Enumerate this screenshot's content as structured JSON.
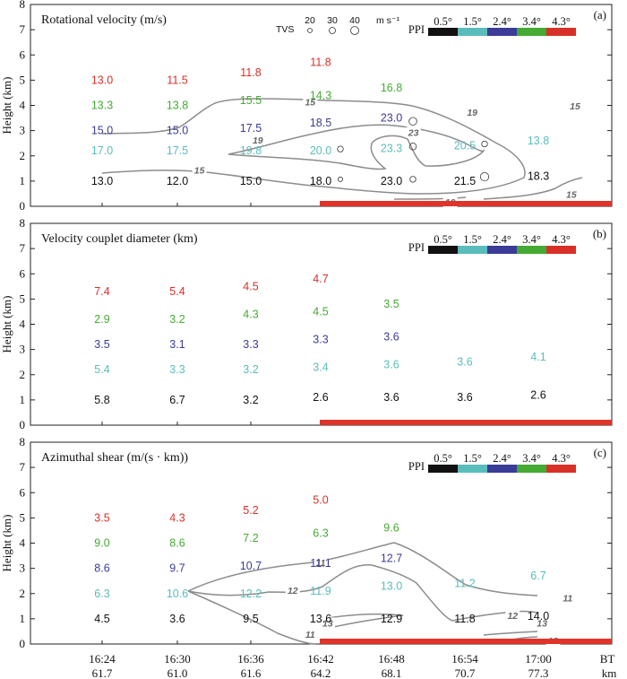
{
  "colors": {
    "ppi_0_5": "#111111",
    "ppi_1_5": "#5bbcbc",
    "ppi_2_4": "#3b3b98",
    "ppi_3_4": "#44aa33",
    "ppi_4_3": "#d73127",
    "contour": "#8c8c8c",
    "bar": "#e0342a"
  },
  "ppi_legend": {
    "label": "PPI",
    "items": [
      "0.5°",
      "1.5°",
      "2.4°",
      "3.4°",
      "4.3°"
    ]
  },
  "tvs_legend": {
    "label": "TVS",
    "sizes": [
      "20",
      "30",
      "40"
    ],
    "unit": "m s⁻¹"
  },
  "x_axis": {
    "times": [
      "16:24",
      "16:30",
      "16:36",
      "16:42",
      "16:48",
      "16:54",
      "17:00"
    ],
    "distances": [
      "61.7",
      "61.0",
      "61.6",
      "64.2",
      "68.1",
      "70.7",
      "77.3"
    ],
    "label_top": "BT",
    "label_bottom": "km"
  },
  "chart_data": [
    {
      "id": "a",
      "type": "table",
      "panel_label": "(a)",
      "title": "Rotational velocity (m/s)",
      "ylabel": "Height (km)",
      "ylim": [
        0,
        8
      ],
      "yticks": [
        "0",
        "1",
        "2",
        "3",
        "4",
        "5",
        "6",
        "7",
        "8"
      ],
      "columns": [
        "16:24",
        "16:30",
        "16:36",
        "16:42",
        "16:48",
        "16:54",
        "17:00"
      ],
      "points": [
        {
          "col": 0,
          "h": 1.0,
          "ppi": 0,
          "text": "13.0"
        },
        {
          "col": 0,
          "h": 2.2,
          "ppi": 1,
          "text": "17.0"
        },
        {
          "col": 0,
          "h": 3.0,
          "ppi": 2,
          "text": "15.0"
        },
        {
          "col": 0,
          "h": 4.0,
          "ppi": 3,
          "text": "13.3"
        },
        {
          "col": 0,
          "h": 5.0,
          "ppi": 4,
          "text": "13.0"
        },
        {
          "col": 1,
          "h": 1.0,
          "ppi": 0,
          "text": "12.0"
        },
        {
          "col": 1,
          "h": 2.2,
          "ppi": 1,
          "text": "17.5"
        },
        {
          "col": 1,
          "h": 3.0,
          "ppi": 2,
          "text": "15.0"
        },
        {
          "col": 1,
          "h": 4.0,
          "ppi": 3,
          "text": "13.8"
        },
        {
          "col": 1,
          "h": 5.0,
          "ppi": 4,
          "text": "11.5"
        },
        {
          "col": 2,
          "h": 1.0,
          "ppi": 0,
          "text": "15.0"
        },
        {
          "col": 2,
          "h": 2.2,
          "ppi": 1,
          "text": "19.8"
        },
        {
          "col": 2,
          "h": 3.1,
          "ppi": 2,
          "text": "17.5"
        },
        {
          "col": 2,
          "h": 4.2,
          "ppi": 3,
          "text": "15.5"
        },
        {
          "col": 2,
          "h": 5.3,
          "ppi": 4,
          "text": "11.8"
        },
        {
          "col": 3,
          "h": 1.0,
          "ppi": 0,
          "text": "18.0"
        },
        {
          "col": 3,
          "h": 2.2,
          "ppi": 1,
          "text": "20.0"
        },
        {
          "col": 3,
          "h": 3.3,
          "ppi": 2,
          "text": "18.5"
        },
        {
          "col": 3,
          "h": 4.4,
          "ppi": 3,
          "text": "14.3"
        },
        {
          "col": 3,
          "h": 5.7,
          "ppi": 4,
          "text": "11.8"
        },
        {
          "col": 4,
          "h": 1.0,
          "ppi": 0,
          "text": "23.0"
        },
        {
          "col": 4,
          "h": 2.3,
          "ppi": 1,
          "text": "23.3"
        },
        {
          "col": 4,
          "h": 3.5,
          "ppi": 2,
          "text": "23.0"
        },
        {
          "col": 4,
          "h": 4.7,
          "ppi": 3,
          "text": "16.8"
        },
        {
          "col": 5,
          "h": 1.0,
          "ppi": 0,
          "text": "21.5"
        },
        {
          "col": 5,
          "h": 2.4,
          "ppi": 1,
          "text": "20.5"
        },
        {
          "col": 6,
          "h": 1.2,
          "ppi": 0,
          "text": "18.3"
        },
        {
          "col": 6,
          "h": 2.6,
          "ppi": 1,
          "text": "13.8"
        }
      ],
      "tvs": [
        {
          "col": 3,
          "h": 2.2,
          "v": 22
        },
        {
          "col": 3,
          "h": 1.0,
          "v": 18
        },
        {
          "col": 4,
          "h": 3.3,
          "v": 28
        },
        {
          "col": 4,
          "h": 2.3,
          "v": 25
        },
        {
          "col": 4,
          "h": 1.0,
          "v": 22
        },
        {
          "col": 5,
          "h": 2.4,
          "v": 22
        },
        {
          "col": 5,
          "h": 1.1,
          "v": 30
        }
      ],
      "contour_labels": [
        {
          "text": "15",
          "x": 1.3,
          "h": 1.4
        },
        {
          "text": "15",
          "x": 2.85,
          "h": 4.1
        },
        {
          "text": "19",
          "x": 2.1,
          "h": 2.6
        },
        {
          "text": "23",
          "x": 4.3,
          "h": 2.9
        },
        {
          "text": "19",
          "x": 5.1,
          "h": 3.7
        },
        {
          "text": "15",
          "x": 6.5,
          "h": 3.95
        },
        {
          "text": "10",
          "x": 4.8,
          "h": 0.15
        },
        {
          "text": "15",
          "x": 6.45,
          "h": 0.45
        }
      ],
      "bar_from_col": 3
    },
    {
      "id": "b",
      "type": "table",
      "panel_label": "(b)",
      "title": "Velocity couplet diameter (km)",
      "ylabel": "Height (km)",
      "ylim": [
        0,
        8
      ],
      "yticks": [
        "0",
        "1",
        "2",
        "3",
        "4",
        "5",
        "6",
        "7",
        "8"
      ],
      "columns": [
        "16:24",
        "16:30",
        "16:36",
        "16:42",
        "16:48",
        "16:54",
        "17:00"
      ],
      "points": [
        {
          "col": 0,
          "h": 1.0,
          "ppi": 0,
          "text": "5.8"
        },
        {
          "col": 0,
          "h": 2.2,
          "ppi": 1,
          "text": "5.4"
        },
        {
          "col": 0,
          "h": 3.2,
          "ppi": 2,
          "text": "3.5"
        },
        {
          "col": 0,
          "h": 4.2,
          "ppi": 3,
          "text": "2.9"
        },
        {
          "col": 0,
          "h": 5.3,
          "ppi": 4,
          "text": "7.4"
        },
        {
          "col": 1,
          "h": 1.0,
          "ppi": 0,
          "text": "6.7"
        },
        {
          "col": 1,
          "h": 2.2,
          "ppi": 1,
          "text": "3.3"
        },
        {
          "col": 1,
          "h": 3.2,
          "ppi": 2,
          "text": "3.1"
        },
        {
          "col": 1,
          "h": 4.2,
          "ppi": 3,
          "text": "3.2"
        },
        {
          "col": 1,
          "h": 5.3,
          "ppi": 4,
          "text": "5.4"
        },
        {
          "col": 2,
          "h": 1.0,
          "ppi": 0,
          "text": "3.2"
        },
        {
          "col": 2,
          "h": 2.2,
          "ppi": 1,
          "text": "3.2"
        },
        {
          "col": 2,
          "h": 3.2,
          "ppi": 2,
          "text": "3.3"
        },
        {
          "col": 2,
          "h": 4.4,
          "ppi": 3,
          "text": "4.3"
        },
        {
          "col": 2,
          "h": 5.5,
          "ppi": 4,
          "text": "4.5"
        },
        {
          "col": 3,
          "h": 1.1,
          "ppi": 0,
          "text": "2.6"
        },
        {
          "col": 3,
          "h": 2.3,
          "ppi": 1,
          "text": "3.4"
        },
        {
          "col": 3,
          "h": 3.4,
          "ppi": 2,
          "text": "3.3"
        },
        {
          "col": 3,
          "h": 4.5,
          "ppi": 3,
          "text": "4.5"
        },
        {
          "col": 3,
          "h": 5.8,
          "ppi": 4,
          "text": "4.7"
        },
        {
          "col": 4,
          "h": 1.1,
          "ppi": 0,
          "text": "3.6"
        },
        {
          "col": 4,
          "h": 2.4,
          "ppi": 1,
          "text": "3.6"
        },
        {
          "col": 4,
          "h": 3.5,
          "ppi": 2,
          "text": "3.6"
        },
        {
          "col": 4,
          "h": 4.8,
          "ppi": 3,
          "text": "3.5"
        },
        {
          "col": 5,
          "h": 1.1,
          "ppi": 0,
          "text": "3.6"
        },
        {
          "col": 5,
          "h": 2.5,
          "ppi": 1,
          "text": "3.6"
        },
        {
          "col": 6,
          "h": 1.2,
          "ppi": 0,
          "text": "2.6"
        },
        {
          "col": 6,
          "h": 2.7,
          "ppi": 1,
          "text": "4.1"
        }
      ],
      "tvs": [],
      "contour_labels": [],
      "bar_from_col": 3
    },
    {
      "id": "c",
      "type": "table",
      "panel_label": "(c)",
      "title": "Azimuthal shear (m/(s · km))",
      "ylabel": "Height (km)",
      "ylim": [
        0,
        8
      ],
      "yticks": [
        "0",
        "1",
        "2",
        "3",
        "4",
        "5",
        "6",
        "7",
        "8"
      ],
      "columns": [
        "16:24",
        "16:30",
        "16:36",
        "16:42",
        "16:48",
        "16:54",
        "17:00"
      ],
      "points": [
        {
          "col": 0,
          "h": 1.0,
          "ppi": 0,
          "text": "4.5"
        },
        {
          "col": 0,
          "h": 2.0,
          "ppi": 1,
          "text": "6.3"
        },
        {
          "col": 0,
          "h": 3.0,
          "ppi": 2,
          "text": "8.6"
        },
        {
          "col": 0,
          "h": 4.0,
          "ppi": 3,
          "text": "9.0"
        },
        {
          "col": 0,
          "h": 5.0,
          "ppi": 4,
          "text": "3.5"
        },
        {
          "col": 1,
          "h": 1.0,
          "ppi": 0,
          "text": "3.6"
        },
        {
          "col": 1,
          "h": 2.0,
          "ppi": 1,
          "text": "10.6"
        },
        {
          "col": 1,
          "h": 3.0,
          "ppi": 2,
          "text": "9.7"
        },
        {
          "col": 1,
          "h": 4.0,
          "ppi": 3,
          "text": "8.6"
        },
        {
          "col": 1,
          "h": 5.0,
          "ppi": 4,
          "text": "4.3"
        },
        {
          "col": 2,
          "h": 1.0,
          "ppi": 0,
          "text": "9.5"
        },
        {
          "col": 2,
          "h": 2.0,
          "ppi": 1,
          "text": "12.2"
        },
        {
          "col": 2,
          "h": 3.1,
          "ppi": 2,
          "text": "10.7"
        },
        {
          "col": 2,
          "h": 4.2,
          "ppi": 3,
          "text": "7.2"
        },
        {
          "col": 2,
          "h": 5.3,
          "ppi": 4,
          "text": "5.2"
        },
        {
          "col": 3,
          "h": 1.0,
          "ppi": 0,
          "text": "13.6"
        },
        {
          "col": 3,
          "h": 2.1,
          "ppi": 1,
          "text": "11.9"
        },
        {
          "col": 3,
          "h": 3.2,
          "ppi": 2,
          "text": "11.1"
        },
        {
          "col": 3,
          "h": 4.4,
          "ppi": 3,
          "text": "6.3"
        },
        {
          "col": 3,
          "h": 5.7,
          "ppi": 4,
          "text": "5.0"
        },
        {
          "col": 4,
          "h": 1.0,
          "ppi": 0,
          "text": "12.9"
        },
        {
          "col": 4,
          "h": 2.3,
          "ppi": 1,
          "text": "13.0"
        },
        {
          "col": 4,
          "h": 3.4,
          "ppi": 2,
          "text": "12.7"
        },
        {
          "col": 4,
          "h": 4.6,
          "ppi": 3,
          "text": "9.6"
        },
        {
          "col": 5,
          "h": 1.0,
          "ppi": 0,
          "text": "11.8"
        },
        {
          "col": 5,
          "h": 2.4,
          "ppi": 1,
          "text": "11.2"
        },
        {
          "col": 6,
          "h": 1.1,
          "ppi": 0,
          "text": "14.0"
        },
        {
          "col": 6,
          "h": 2.7,
          "ppi": 1,
          "text": "6.7"
        }
      ],
      "tvs": [],
      "contour_labels": [
        {
          "text": "11",
          "x": 3.0,
          "h": 3.2
        },
        {
          "text": "12",
          "x": 2.6,
          "h": 2.1
        },
        {
          "text": "13",
          "x": 3.1,
          "h": 0.8
        },
        {
          "text": "11",
          "x": 2.85,
          "h": 0.35
        },
        {
          "text": "11",
          "x": 6.4,
          "h": 1.8
        },
        {
          "text": "12",
          "x": 5.65,
          "h": 1.1
        },
        {
          "text": "13",
          "x": 6.05,
          "h": 0.8
        },
        {
          "text": "12",
          "x": 6.2,
          "h": 0.1
        }
      ],
      "bar_from_col": 3
    }
  ]
}
